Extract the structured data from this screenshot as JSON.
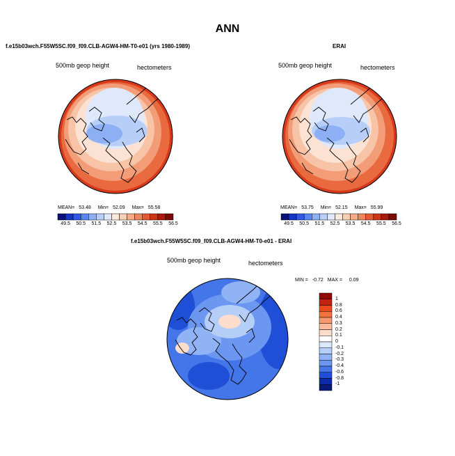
{
  "figure": {
    "title": "ANN"
  },
  "panel_model": {
    "case_name": "f.e15b03wch.F55W5SC.f09_f09.CLB-AGW4-HM-T0-e01 (yrs 1980-1989)",
    "field_label": "500mb geop height",
    "units_label": "hectometers",
    "stats": {
      "mean_label": "MEAN=",
      "mean": "53.48",
      "min_label": "Min=",
      "min": "52.09",
      "max_label": "Max=",
      "max": "55.58"
    },
    "colorbar_labels": [
      "49.5",
      "50.5",
      "51.5",
      "52.5",
      "53.5",
      "54.5",
      "55.5",
      "56.5"
    ]
  },
  "panel_obs": {
    "case_name": "ERAI",
    "field_label": "500mb geop height",
    "units_label": "hectometers",
    "stats": {
      "mean_label": "MEAN=",
      "mean": "53.75",
      "min_label": "Min=",
      "min": "52.15",
      "max_label": "Max=",
      "max": "55.99"
    },
    "colorbar_labels": [
      "49.5",
      "50.5",
      "51.5",
      "52.5",
      "53.5",
      "54.5",
      "55.5",
      "56.5"
    ]
  },
  "panel_diff": {
    "case_name": "f.e15b03wch.F55W5SC.f09_f09.CLB-AGW4-HM-T0-e01 - ERAI",
    "field_label": "500mb geop height",
    "units_label": "hectometers",
    "stats": {
      "min_label": "MIN =",
      "min": "-0.72",
      "max_label": "MAX =",
      "max": "0.09"
    },
    "colorbar_labels": [
      "1",
      "0.8",
      "0.6",
      "0.4",
      "0.3",
      "0.2",
      "0.1",
      "0",
      "-0.1",
      "-0.2",
      "-0.3",
      "-0.4",
      "-0.6",
      "-0.8",
      "-1"
    ]
  },
  "colors": {
    "abs_scale": [
      "#08107a",
      "#1533c4",
      "#2f5ae8",
      "#5a86f0",
      "#8db0f5",
      "#b7cff8",
      "#dfe9fb",
      "#fbe9dc",
      "#f9cfb3",
      "#f6ad86",
      "#f0845a",
      "#e6582f",
      "#cf3417",
      "#a81a0c",
      "#7a0b06"
    ],
    "diff_scale": [
      "#8e0a08",
      "#c3220e",
      "#ea4a1c",
      "#f3733f",
      "#f79970",
      "#fabb9c",
      "#fcdccb",
      "#ffffff",
      "#dae8fb",
      "#b4cef8",
      "#8fb3f5",
      "#6b97f1",
      "#4475e9",
      "#1f4fd6",
      "#0c2aa6",
      "#061a7a"
    ]
  }
}
